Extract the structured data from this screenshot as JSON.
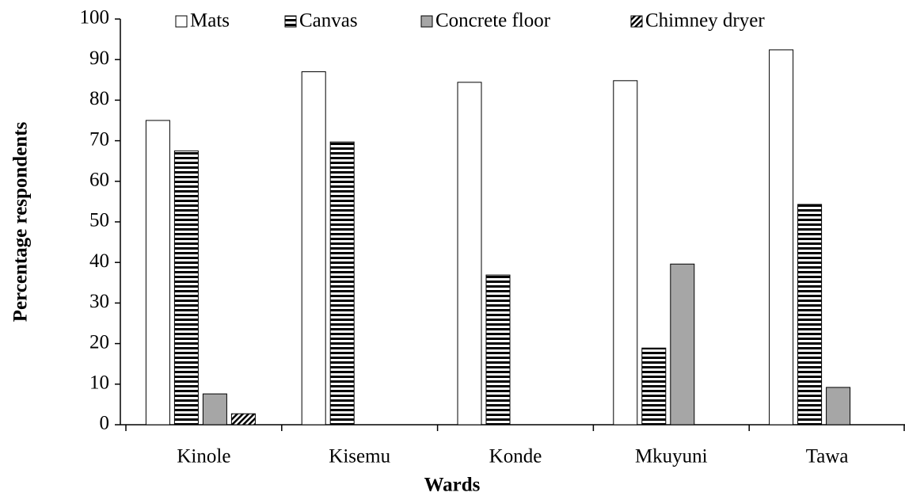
{
  "chart_data": {
    "type": "bar",
    "x_label": "Wards",
    "y_label": "Percentage respondents",
    "categories": [
      "Kinole",
      "Kisemu",
      "Konde",
      "Mkuyuni",
      "Tawa"
    ],
    "series": [
      {
        "name": "Mats",
        "color": "#ffffff",
        "pattern": "solid",
        "values": [
          75,
          87,
          84.4,
          84.8,
          92.4
        ]
      },
      {
        "name": "Canvas",
        "color": "#000000",
        "pattern": "horizontal",
        "values": [
          67.5,
          69.7,
          36.9,
          18.9,
          54.3
        ]
      },
      {
        "name": "Concrete floor",
        "color": "#a6a6a6",
        "pattern": "solid",
        "values": [
          7.6,
          0,
          0,
          39.6,
          9.2
        ]
      },
      {
        "name": "Chimney dryer",
        "color": "#000000",
        "pattern": "diagonal",
        "values": [
          2.7,
          0,
          0,
          0,
          0
        ]
      }
    ],
    "ylim": [
      0,
      100
    ],
    "yticks": [
      0,
      10,
      20,
      30,
      40,
      50,
      60,
      70,
      80,
      90,
      100
    ],
    "grid": false,
    "legend": "top"
  }
}
